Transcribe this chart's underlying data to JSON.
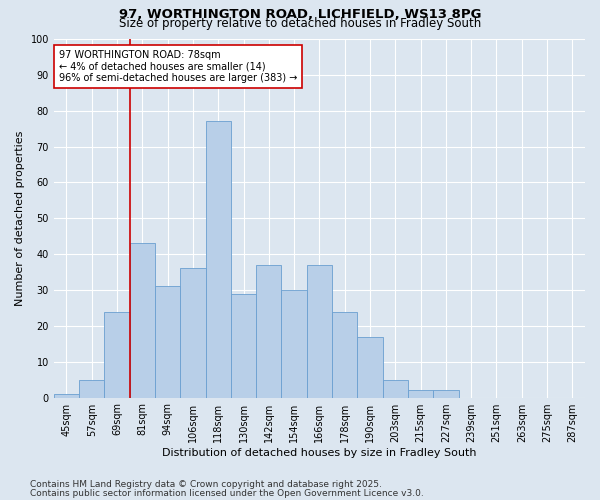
{
  "title_line1": "97, WORTHINGTON ROAD, LICHFIELD, WS13 8PG",
  "title_line2": "Size of property relative to detached houses in Fradley South",
  "xlabel": "Distribution of detached houses by size in Fradley South",
  "ylabel": "Number of detached properties",
  "categories": [
    "45sqm",
    "57sqm",
    "69sqm",
    "81sqm",
    "94sqm",
    "106sqm",
    "118sqm",
    "130sqm",
    "142sqm",
    "154sqm",
    "166sqm",
    "178sqm",
    "190sqm",
    "203sqm",
    "215sqm",
    "227sqm",
    "239sqm",
    "251sqm",
    "263sqm",
    "275sqm",
    "287sqm"
  ],
  "values": [
    1,
    5,
    24,
    43,
    31,
    36,
    77,
    29,
    37,
    30,
    37,
    24,
    17,
    5,
    2,
    2,
    0,
    0,
    0,
    0,
    0
  ],
  "bar_color": "#b8cfe8",
  "bar_edge_color": "#6a9fd0",
  "background_color": "#dce6f0",
  "grid_color": "#ffffff",
  "annotation_text": "97 WORTHINGTON ROAD: 78sqm\n← 4% of detached houses are smaller (14)\n96% of semi-detached houses are larger (383) →",
  "annotation_box_color": "#ffffff",
  "annotation_box_edge_color": "#cc0000",
  "vline_color": "#cc0000",
  "ylim": [
    0,
    100
  ],
  "yticks": [
    0,
    10,
    20,
    30,
    40,
    50,
    60,
    70,
    80,
    90,
    100
  ],
  "footnote_line1": "Contains HM Land Registry data © Crown copyright and database right 2025.",
  "footnote_line2": "Contains public sector information licensed under the Open Government Licence v3.0.",
  "title_fontsize": 9.5,
  "subtitle_fontsize": 8.5,
  "tick_fontsize": 7,
  "xlabel_fontsize": 8,
  "ylabel_fontsize": 8,
  "annotation_fontsize": 7,
  "footnote_fontsize": 6.5
}
